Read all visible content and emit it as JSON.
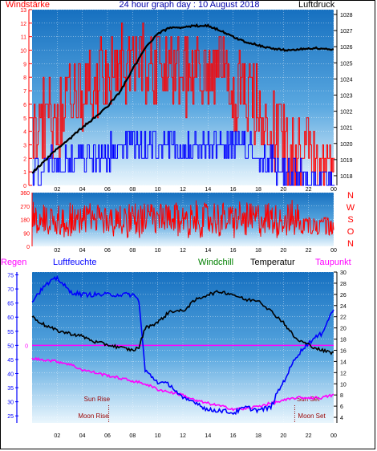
{
  "title": "24 hour graph day : 10 August 2018",
  "labels": {
    "windstaerke": "Windstärke",
    "luftdruck": "Luftdruck",
    "regen": "Regen",
    "luftfeuchte": "Luftfeuchte",
    "windchill": "Windchill",
    "temperatur": "Temperatur",
    "taupunkt": "Taupunkt",
    "sun_rise": "Sun Rise",
    "sun_set": "Sun Set",
    "moon_rise": "Moon Rise",
    "moon_set": "Moon Set"
  },
  "colors": {
    "wind_gust": "#ff0000",
    "wind_speed": "#0000ff",
    "pressure": "#000000",
    "direction": "#ff0000",
    "humidity": "#0000ff",
    "temperature": "#000000",
    "dewpoint": "#ff00ff",
    "rain": "#ff00ff",
    "axis_wind": "#ff0000",
    "axis_pressure": "#000000",
    "axis_humidity": "#0000ff",
    "axis_temp": "#000000",
    "title": "#0000aa",
    "event": "#990000",
    "windchill": "#008000"
  },
  "x_ticks": [
    "02",
    "04",
    "06",
    "08",
    "10",
    "12",
    "14",
    "16",
    "18",
    "20",
    "22",
    "00"
  ],
  "chart_data": [
    {
      "type": "line",
      "title": "24 hour graph day : 10 August 2018",
      "x_range": [
        0,
        24
      ],
      "y_left": {
        "label": "Windstärke",
        "ticks": [
          "0",
          "1",
          "2",
          "3",
          "4",
          "5",
          "6",
          "7",
          "8",
          "9",
          "10",
          "11",
          "12",
          "13"
        ],
        "range": [
          0,
          13
        ]
      },
      "y_right": {
        "label": "Luftdruck",
        "ticks": [
          "1018",
          "1019",
          "1020",
          "1021",
          "1022",
          "1023",
          "1024",
          "1025",
          "1026",
          "1027",
          "1028"
        ],
        "range": [
          1017.4,
          1028.3
        ]
      },
      "series": [
        {
          "name": "Luftdruck",
          "axis": "right",
          "points": [
            [
              0,
              1018.2
            ],
            [
              1,
              1018.9
            ],
            [
              2,
              1019.7
            ],
            [
              3,
              1020.3
            ],
            [
              4,
              1021.0
            ],
            [
              5,
              1021.6
            ],
            [
              6,
              1022.3
            ],
            [
              7,
              1023.2
            ],
            [
              8,
              1024.6
            ],
            [
              9,
              1025.9
            ],
            [
              10,
              1026.8
            ],
            [
              11,
              1027.2
            ],
            [
              12,
              1027.2
            ],
            [
              13,
              1027.3
            ],
            [
              14,
              1027.3
            ],
            [
              15,
              1027.0
            ],
            [
              16,
              1026.6
            ],
            [
              17,
              1026.3
            ],
            [
              18,
              1026.1
            ],
            [
              19,
              1025.9
            ],
            [
              20,
              1025.8
            ],
            [
              21,
              1025.8
            ],
            [
              22,
              1025.9
            ],
            [
              23,
              1025.9
            ],
            [
              24,
              1025.8
            ]
          ]
        },
        {
          "name": "Windstärke (Böen)",
          "axis": "left",
          "profile": [
            [
              0,
              4
            ],
            [
              3,
              6
            ],
            [
              6,
              8
            ],
            [
              8,
              9
            ],
            [
              11,
              9
            ],
            [
              13,
              8
            ],
            [
              15,
              8
            ],
            [
              18,
              6
            ],
            [
              20,
              3
            ],
            [
              22,
              2
            ],
            [
              24,
              1
            ]
          ]
        },
        {
          "name": "Windstärke (Mittel)",
          "axis": "left",
          "profile": [
            [
              0,
              1
            ],
            [
              4,
              2
            ],
            [
              8,
              3
            ],
            [
              12,
              3
            ],
            [
              16,
              3
            ],
            [
              19,
              2
            ],
            [
              20,
              1
            ],
            [
              24,
              0
            ]
          ]
        }
      ]
    },
    {
      "type": "scatter",
      "title": "Windrichtung",
      "x_range": [
        0,
        24
      ],
      "y_left": {
        "ticks": [
          "0",
          "90",
          "180",
          "270",
          "360"
        ],
        "range": [
          0,
          360
        ]
      },
      "y_right_letters": [
        "N",
        "W",
        "S",
        "O",
        "N"
      ],
      "series": [
        {
          "name": "Windrichtung",
          "mean": 180,
          "spread": 110,
          "late_value": 180
        }
      ]
    },
    {
      "type": "line",
      "x_range": [
        0,
        24
      ],
      "y_left": {
        "label": "Luftfeuchte",
        "ticks": [
          "25",
          "30",
          "35",
          "40",
          "45",
          "50",
          "55",
          "60",
          "65",
          "70",
          "75"
        ],
        "range": [
          22.5,
          76
        ]
      },
      "y_mid": {
        "label": "Regen",
        "ticks": [
          "0"
        ],
        "value": 0
      },
      "y_right": {
        "label": "Temperatur",
        "ticks": [
          "4",
          "6",
          "8",
          "10",
          "12",
          "14",
          "16",
          "18",
          "20",
          "22",
          "24",
          "26",
          "28",
          "30"
        ],
        "range": [
          3,
          30
        ]
      },
      "series": [
        {
          "name": "Luftfeuchte",
          "axis": "left",
          "points": [
            [
              0,
              66
            ],
            [
              1,
              71
            ],
            [
              2,
              74
            ],
            [
              3,
              69
            ],
            [
              4,
              68
            ],
            [
              5,
              68
            ],
            [
              6,
              68
            ],
            [
              7,
              68
            ],
            [
              8,
              68
            ],
            [
              8.5,
              66
            ],
            [
              9,
              41
            ],
            [
              10,
              37
            ],
            [
              11,
              36
            ],
            [
              12,
              31
            ],
            [
              13,
              30
            ],
            [
              14,
              27
            ],
            [
              15,
              27
            ],
            [
              16,
              26
            ],
            [
              17,
              28
            ],
            [
              18,
              27
            ],
            [
              19,
              28
            ],
            [
              19.5,
              33
            ],
            [
              20,
              37
            ],
            [
              21,
              46
            ],
            [
              22,
              51
            ],
            [
              23,
              54
            ],
            [
              24,
              63
            ]
          ]
        },
        {
          "name": "Temperatur",
          "axis": "right",
          "points": [
            [
              0,
              22
            ],
            [
              1,
              20.5
            ],
            [
              2,
              19.5
            ],
            [
              3,
              19
            ],
            [
              4,
              18.5
            ],
            [
              5,
              17.5
            ],
            [
              6,
              17
            ],
            [
              7,
              16.5
            ],
            [
              8,
              16
            ],
            [
              8.5,
              16.5
            ],
            [
              9,
              20
            ],
            [
              10,
              21
            ],
            [
              11,
              23
            ],
            [
              12,
              23
            ],
            [
              13,
              25
            ],
            [
              14,
              26
            ],
            [
              15,
              26.5
            ],
            [
              16,
              26
            ],
            [
              17,
              25
            ],
            [
              18,
              25
            ],
            [
              19,
              23
            ],
            [
              20,
              21
            ],
            [
              21,
              18
            ],
            [
              22,
              17
            ],
            [
              23,
              16
            ],
            [
              24,
              15.5
            ]
          ]
        },
        {
          "name": "Taupunkt",
          "axis": "right",
          "points": [
            [
              0,
              14.5
            ],
            [
              1,
              14.3
            ],
            [
              2,
              14
            ],
            [
              3,
              13.5
            ],
            [
              4,
              12.5
            ],
            [
              5,
              12
            ],
            [
              6,
              11.5
            ],
            [
              7,
              11
            ],
            [
              8,
              10.5
            ],
            [
              9,
              10
            ],
            [
              10,
              9
            ],
            [
              11,
              8.5
            ],
            [
              12,
              8
            ],
            [
              13,
              7
            ],
            [
              14,
              6.5
            ],
            [
              15,
              6
            ],
            [
              16,
              5.5
            ],
            [
              17,
              5.5
            ],
            [
              18,
              6
            ],
            [
              19,
              6.5
            ],
            [
              20,
              7
            ],
            [
              21,
              7.5
            ],
            [
              22,
              7.5
            ],
            [
              23,
              7.5
            ],
            [
              24,
              8
            ]
          ]
        }
      ],
      "events": [
        {
          "name": "Sun Rise",
          "hour": 6.2
        },
        {
          "name": "Sun Set",
          "hour": 20.8
        },
        {
          "name": "Moon Rise",
          "hour": 6.1
        },
        {
          "name": "Moon Set",
          "hour": 20.9
        }
      ]
    }
  ]
}
